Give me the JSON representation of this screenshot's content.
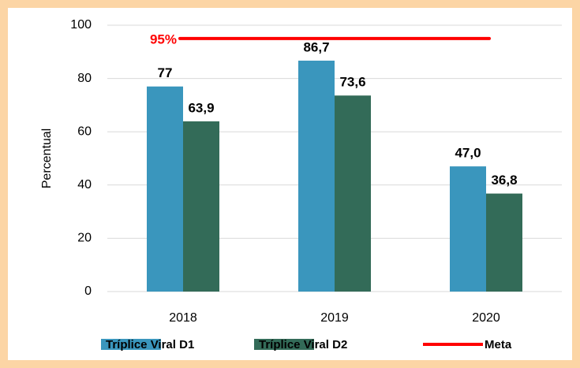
{
  "chart_data": {
    "type": "bar",
    "y_axis_label": "Percentual",
    "categories": [
      "2018",
      "2019",
      "2020"
    ],
    "series": [
      {
        "name": "Tríplice Viral D1",
        "color": "#3a96bd",
        "values": [
          77,
          86.7,
          47.0
        ],
        "value_labels": [
          "77",
          "86,7",
          "47,0"
        ]
      },
      {
        "name": "Tríplice Viral D2",
        "color": "#336b58",
        "values": [
          63.9,
          73.6,
          36.8
        ],
        "value_labels": [
          "63,9",
          "73,6",
          "36,8"
        ]
      }
    ],
    "target": {
      "name": "Meta",
      "color": "#ff0000",
      "value": 95,
      "value_label": "95%"
    },
    "ylim": [
      0,
      100
    ],
    "yticks": [
      0,
      20,
      40,
      60,
      80,
      100
    ],
    "grid": true,
    "legend": "bottom"
  }
}
